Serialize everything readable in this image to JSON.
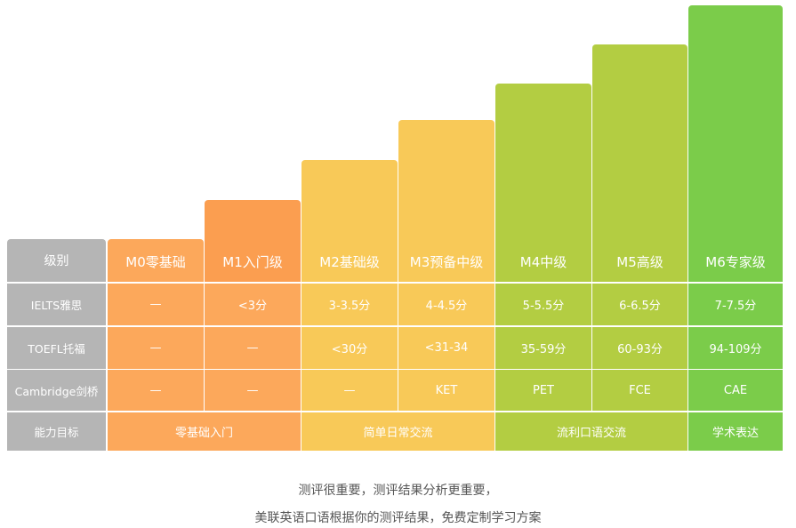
{
  "chart_data": {
    "type": "table",
    "header_label": "级别",
    "levels": [
      "M0零基础",
      "M1入门级",
      "M2基础级",
      "M3预备中级",
      "M4中级",
      "M5高级",
      "M6专家级"
    ],
    "rows": [
      {
        "label": "IELTS雅思",
        "values": [
          "—",
          "<3分",
          "3-3.5分",
          "4-4.5分",
          "5-5.5分",
          "6-6.5分",
          "7-7.5分"
        ]
      },
      {
        "label": "TOEFL托福",
        "values": [
          "—",
          "—",
          "<30分",
          "<31-34",
          "35-59分",
          "60-93分",
          "94-109分"
        ]
      },
      {
        "label": "Cambridge剑桥",
        "values": [
          "—",
          "—",
          "—",
          "KET",
          "PET",
          "FCE",
          "CAE"
        ]
      }
    ],
    "goal_label": "能力目标",
    "goals": [
      {
        "text": "零基础入门",
        "from": 0,
        "span": 2
      },
      {
        "text": "简单日常交流",
        "from": 2,
        "span": 2
      },
      {
        "text": "流利口语交流",
        "from": 4,
        "span": 2
      },
      {
        "text": "学术表达",
        "from": 6,
        "span": 1
      }
    ],
    "colors": {
      "header_gray": "#b5b5b5",
      "orange": "#fca85b",
      "orange_top": "#fb9e50",
      "yellow": "#f8c958",
      "lime": "#b3cd42",
      "green": "#7bcc4a"
    }
  },
  "caption": {
    "line1": "测评很重要，测评结果分析更重要，",
    "line2": "美联英语口语根据你的测评结果，免费定制学习方案"
  }
}
